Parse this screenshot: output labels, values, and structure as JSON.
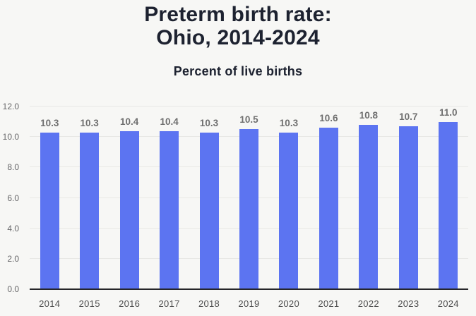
{
  "header": {
    "title_line1": "Preterm birth rate:",
    "title_line2": "Ohio, 2014-2024",
    "subtitle": "Percent of live births"
  },
  "chart_data": {
    "type": "bar",
    "title": "Preterm birth rate: Ohio, 2014-2024",
    "subtitle": "Percent of live births",
    "categories": [
      "2014",
      "2015",
      "2016",
      "2017",
      "2018",
      "2019",
      "2020",
      "2021",
      "2022",
      "2023",
      "2024"
    ],
    "values": [
      10.3,
      10.3,
      10.4,
      10.4,
      10.3,
      10.5,
      10.3,
      10.6,
      10.8,
      10.7,
      11.0
    ],
    "value_labels": [
      "10.3",
      "10.3",
      "10.4",
      "10.4",
      "10.3",
      "10.5",
      "10.3",
      "10.6",
      "10.8",
      "10.7",
      "11.0"
    ],
    "xlabel": "",
    "ylabel": "",
    "ylim": [
      0,
      12
    ],
    "y_ticks": [
      {
        "v": 0,
        "label": "0.0"
      },
      {
        "v": 2,
        "label": "2.0"
      },
      {
        "v": 4,
        "label": "4.0"
      },
      {
        "v": 6,
        "label": "6.0"
      },
      {
        "v": 8,
        "label": "8.0"
      },
      {
        "v": 10,
        "label": "10.0"
      },
      {
        "v": 12,
        "label": "12.0"
      }
    ],
    "grid": true,
    "legend_position": "none",
    "colors": {
      "bar": "#5c74f1",
      "background": "#f7f7f5",
      "title_text": "#1d2230",
      "value_label_text": "#6f6f6f",
      "axis_tick_text": "#4c4c4c",
      "gridline": "#e8e8e5",
      "baseline": "#26262a"
    }
  }
}
